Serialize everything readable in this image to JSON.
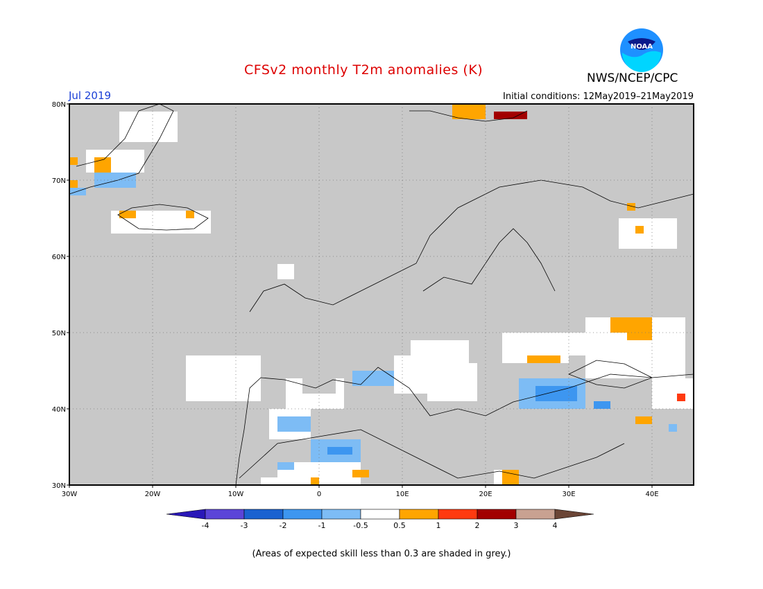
{
  "header": {
    "title": "CFSv2 monthly T2m anomalies (K)",
    "org": "NWS/NCEP/CPC",
    "month": "Jul 2019",
    "initial_conditions": "Initial conditions: 12May2019–21May2019",
    "logo_text": "NOAA"
  },
  "map": {
    "lon_range": [
      -30,
      45
    ],
    "lat_range": [
      30,
      80
    ],
    "background_color": "#c8c8c8",
    "lon_ticks": [
      {
        "value": -30,
        "label": "30W"
      },
      {
        "value": -20,
        "label": "20W"
      },
      {
        "value": -10,
        "label": "10W"
      },
      {
        "value": 0,
        "label": "0"
      },
      {
        "value": 10,
        "label": "10E"
      },
      {
        "value": 20,
        "label": "20E"
      },
      {
        "value": 30,
        "label": "30E"
      },
      {
        "value": 40,
        "label": "40E"
      }
    ],
    "lat_ticks": [
      {
        "value": 30,
        "label": "30N"
      },
      {
        "value": 40,
        "label": "40N"
      },
      {
        "value": 50,
        "label": "50N"
      },
      {
        "value": 60,
        "label": "60N"
      },
      {
        "value": 70,
        "label": "70N"
      },
      {
        "value": 80,
        "label": "80N"
      }
    ],
    "anomaly_cells": [
      {
        "lon": [
          -16,
          -7
        ],
        "lat": [
          41,
          47
        ],
        "class": "white"
      },
      {
        "lon": [
          -4,
          3
        ],
        "lat": [
          40,
          44
        ],
        "class": "white"
      },
      {
        "lon": [
          -2,
          2
        ],
        "lat": [
          42,
          45
        ],
        "class": "gray"
      },
      {
        "lon": [
          4,
          9
        ],
        "lat": [
          43,
          45
        ],
        "class": "blue_1"
      },
      {
        "lon": [
          9,
          13
        ],
        "lat": [
          42,
          47
        ],
        "class": "white"
      },
      {
        "lon": [
          11,
          18
        ],
        "lat": [
          46,
          49
        ],
        "class": "white"
      },
      {
        "lon": [
          13,
          19
        ],
        "lat": [
          41,
          46
        ],
        "class": "white"
      },
      {
        "lon": [
          22,
          30
        ],
        "lat": [
          46,
          50
        ],
        "class": "white"
      },
      {
        "lon": [
          24,
          32
        ],
        "lat": [
          47,
          50
        ],
        "class": "white"
      },
      {
        "lon": [
          24,
          32
        ],
        "lat": [
          40,
          44
        ],
        "class": "blue_1"
      },
      {
        "lon": [
          25,
          29
        ],
        "lat": [
          46,
          47
        ],
        "class": "orange"
      },
      {
        "lon": [
          26,
          31
        ],
        "lat": [
          41,
          43
        ],
        "class": "blue_2"
      },
      {
        "lon": [
          32,
          44
        ],
        "lat": [
          44,
          52
        ],
        "class": "white"
      },
      {
        "lon": [
          35,
          40
        ],
        "lat": [
          50,
          52
        ],
        "class": "orange"
      },
      {
        "lon": [
          37,
          40
        ],
        "lat": [
          49,
          52
        ],
        "class": "orange"
      },
      {
        "lon": [
          40,
          45
        ],
        "lat": [
          40,
          44
        ],
        "class": "white"
      },
      {
        "lon": [
          33,
          35
        ],
        "lat": [
          40,
          41
        ],
        "class": "blue_2"
      },
      {
        "lon": [
          43,
          44
        ],
        "lat": [
          41,
          42
        ],
        "class": "red"
      },
      {
        "lon": [
          38,
          40
        ],
        "lat": [
          38,
          39
        ],
        "class": "orange"
      },
      {
        "lon": [
          42,
          43
        ],
        "lat": [
          37,
          38
        ],
        "class": "blue_1"
      },
      {
        "lon": [
          -6,
          -1
        ],
        "lat": [
          36,
          40
        ],
        "class": "white"
      },
      {
        "lon": [
          -5,
          -1
        ],
        "lat": [
          37,
          39
        ],
        "class": "blue_1"
      },
      {
        "lon": [
          -1,
          5
        ],
        "lat": [
          33,
          36
        ],
        "class": "blue_1"
      },
      {
        "lon": [
          1,
          4
        ],
        "lat": [
          34,
          35
        ],
        "class": "blue_2"
      },
      {
        "lon": [
          -5,
          5
        ],
        "lat": [
          30,
          33
        ],
        "class": "white"
      },
      {
        "lon": [
          -5,
          -3
        ],
        "lat": [
          32,
          33
        ],
        "class": "blue_1"
      },
      {
        "lon": [
          -7,
          -5
        ],
        "lat": [
          30,
          31
        ],
        "class": "white"
      },
      {
        "lon": [
          4,
          6
        ],
        "lat": [
          31,
          32
        ],
        "class": "orange"
      },
      {
        "lon": [
          -1,
          0
        ],
        "lat": [
          30,
          31
        ],
        "class": "orange"
      },
      {
        "lon": [
          21,
          24
        ],
        "lat": [
          30,
          32
        ],
        "class": "white"
      },
      {
        "lon": [
          22,
          24
        ],
        "lat": [
          30,
          32
        ],
        "class": "orange"
      },
      {
        "lon": [
          21,
          25
        ],
        "lat": [
          78,
          79
        ],
        "class": "darkred"
      },
      {
        "lon": [
          16,
          20
        ],
        "lat": [
          78,
          80
        ],
        "class": "orange"
      },
      {
        "lon": [
          -28,
          -21
        ],
        "lat": [
          71,
          74
        ],
        "class": "white"
      },
      {
        "lon": [
          -27,
          -25
        ],
        "lat": [
          71,
          73
        ],
        "class": "orange"
      },
      {
        "lon": [
          -27,
          -22
        ],
        "lat": [
          69,
          71
        ],
        "class": "blue_1"
      },
      {
        "lon": [
          -25,
          -13
        ],
        "lat": [
          63,
          66
        ],
        "class": "white"
      },
      {
        "lon": [
          -24,
          -22
        ],
        "lat": [
          65,
          66
        ],
        "class": "orange"
      },
      {
        "lon": [
          -16,
          -15
        ],
        "lat": [
          65,
          66
        ],
        "class": "orange"
      },
      {
        "lon": [
          -24,
          -17
        ],
        "lat": [
          75,
          79
        ],
        "class": "white"
      },
      {
        "lon": [
          -30,
          -29
        ],
        "lat": [
          72,
          73
        ],
        "class": "orange"
      },
      {
        "lon": [
          -30,
          -29
        ],
        "lat": [
          69,
          70
        ],
        "class": "orange"
      },
      {
        "lon": [
          -30,
          -28
        ],
        "lat": [
          68,
          69
        ],
        "class": "blue_1"
      },
      {
        "lon": [
          36,
          43
        ],
        "lat": [
          61,
          65
        ],
        "class": "white"
      },
      {
        "lon": [
          37,
          38
        ],
        "lat": [
          66,
          67
        ],
        "class": "orange"
      },
      {
        "lon": [
          38,
          39
        ],
        "lat": [
          63,
          64
        ],
        "class": "orange"
      },
      {
        "lon": [
          -5,
          -3
        ],
        "lat": [
          57,
          59
        ],
        "class": "white"
      }
    ],
    "country_outlines_note": ""
  },
  "colorbar": {
    "labels": [
      "-4",
      "-3",
      "-2",
      "-1",
      "-0.5",
      "0.5",
      "1",
      "2",
      "3",
      "4"
    ],
    "colors": [
      "#2a18b8",
      "#5b45d8",
      "#1a62d0",
      "#3d96f0",
      "#7dbcf5",
      "#ffffff",
      "#ffa500",
      "#ff3a10",
      "#a20000",
      "#c9a191",
      "#6b4536"
    ]
  },
  "caption": "(Areas of expected skill less than 0.3 are shaded in grey.)",
  "class_colors": {
    "white": "#ffffff",
    "gray": "#c8c8c8",
    "blue_1": "#7dbcf5",
    "blue_2": "#3d96f0",
    "orange": "#ffa500",
    "red": "#ff3a10",
    "darkred": "#a20000"
  }
}
